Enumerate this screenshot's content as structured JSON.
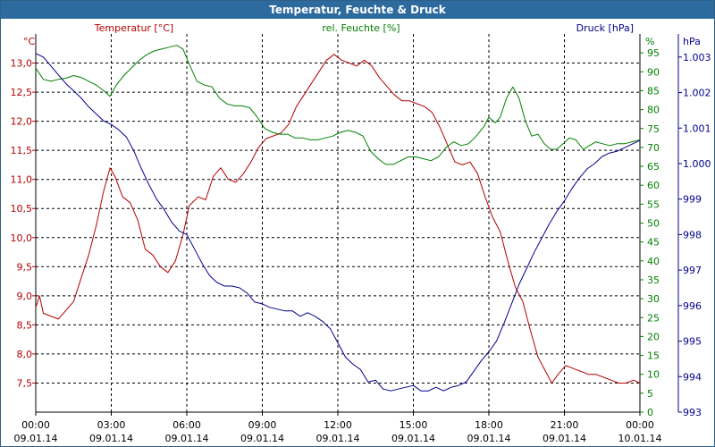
{
  "colors": {
    "temp": "#b40000",
    "hum": "#008000",
    "press": "#00008b",
    "grid": "#000000",
    "title_bg": "#2d6a9e"
  },
  "chart_data": {
    "type": "line",
    "title": "Temperatur, Feuchte & Druck",
    "x_labels": [
      {
        "time": "00:00",
        "date": "09.01.14"
      },
      {
        "time": "03:00",
        "date": "09.01.14"
      },
      {
        "time": "06:00",
        "date": "09.01.14"
      },
      {
        "time": "09:00",
        "date": "09.01.14"
      },
      {
        "time": "12:00",
        "date": "09.01.14"
      },
      {
        "time": "15:00",
        "date": "09.01.14"
      },
      {
        "time": "18:00",
        "date": "09.01.14"
      },
      {
        "time": "21:00",
        "date": "09.01.14"
      },
      {
        "time": "00:00",
        "date": "10.01.14"
      }
    ],
    "x_range_hours": [
      0,
      24
    ],
    "axes": {
      "temp": {
        "title": "Temperatur [°C]",
        "unit": "°C",
        "min": 7.0,
        "max": 13.5,
        "ticks": [
          {
            "v": 7.5,
            "t": "7,5"
          },
          {
            "v": 8.0,
            "t": "8,0"
          },
          {
            "v": 8.5,
            "t": "8,5"
          },
          {
            "v": 9.0,
            "t": "9,0"
          },
          {
            "v": 9.5,
            "t": "9,5"
          },
          {
            "v": 10.0,
            "t": "10,0"
          },
          {
            "v": 10.5,
            "t": "10,5"
          },
          {
            "v": 11.0,
            "t": "11,0"
          },
          {
            "v": 11.5,
            "t": "11,5"
          },
          {
            "v": 12.0,
            "t": "12,0"
          },
          {
            "v": 12.5,
            "t": "12,5"
          },
          {
            "v": 13.0,
            "t": "13,0"
          }
        ]
      },
      "hum": {
        "title": "rel. Feuchte [%]",
        "unit": "%",
        "min": 0,
        "max": 100,
        "ticks": [
          {
            "v": 0,
            "t": "0"
          },
          {
            "v": 5,
            "t": "5"
          },
          {
            "v": 10,
            "t": "10"
          },
          {
            "v": 15,
            "t": "15"
          },
          {
            "v": 20,
            "t": "20"
          },
          {
            "v": 25,
            "t": "25"
          },
          {
            "v": 30,
            "t": "30"
          },
          {
            "v": 35,
            "t": "35"
          },
          {
            "v": 40,
            "t": "40"
          },
          {
            "v": 45,
            "t": "45"
          },
          {
            "v": 50,
            "t": "50"
          },
          {
            "v": 55,
            "t": "55"
          },
          {
            "v": 60,
            "t": "60"
          },
          {
            "v": 65,
            "t": "65"
          },
          {
            "v": 70,
            "t": "70"
          },
          {
            "v": 75,
            "t": "75"
          },
          {
            "v": 80,
            "t": "80"
          },
          {
            "v": 85,
            "t": "85"
          },
          {
            "v": 90,
            "t": "90"
          },
          {
            "v": 95,
            "t": "95"
          }
        ]
      },
      "press": {
        "title": "Druck [hPa]",
        "unit": "hPa",
        "min": 993.0,
        "max": 1003.65,
        "ticks": [
          {
            "v": 993,
            "t": "993"
          },
          {
            "v": 994,
            "t": "994"
          },
          {
            "v": 995,
            "t": "995"
          },
          {
            "v": 996,
            "t": "996"
          },
          {
            "v": 997,
            "t": "997"
          },
          {
            "v": 998,
            "t": "998"
          },
          {
            "v": 999,
            "t": "999"
          },
          {
            "v": 1000,
            "t": "1.000"
          },
          {
            "v": 1001,
            "t": "1.001"
          },
          {
            "v": 1002,
            "t": "1.002"
          },
          {
            "v": 1003,
            "t": "1.003"
          }
        ]
      }
    },
    "series": [
      {
        "name": "Temperatur [°C]",
        "axis": "temp",
        "points": [
          [
            0,
            8.8
          ],
          [
            0.15,
            9.0
          ],
          [
            0.3,
            8.7
          ],
          [
            0.6,
            8.65
          ],
          [
            0.9,
            8.6
          ],
          [
            1.2,
            8.75
          ],
          [
            1.5,
            8.9
          ],
          [
            1.8,
            9.3
          ],
          [
            2.1,
            9.7
          ],
          [
            2.4,
            10.2
          ],
          [
            2.7,
            10.8
          ],
          [
            2.95,
            11.2
          ],
          [
            3.15,
            11.05
          ],
          [
            3.45,
            10.7
          ],
          [
            3.75,
            10.6
          ],
          [
            4.05,
            10.3
          ],
          [
            4.35,
            9.8
          ],
          [
            4.65,
            9.7
          ],
          [
            4.95,
            9.5
          ],
          [
            5.25,
            9.4
          ],
          [
            5.55,
            9.6
          ],
          [
            5.85,
            10.05
          ],
          [
            6.1,
            10.55
          ],
          [
            6.45,
            10.7
          ],
          [
            6.75,
            10.65
          ],
          [
            7.05,
            11.05
          ],
          [
            7.35,
            11.2
          ],
          [
            7.65,
            11.0
          ],
          [
            7.95,
            10.95
          ],
          [
            8.25,
            11.1
          ],
          [
            8.55,
            11.3
          ],
          [
            8.85,
            11.55
          ],
          [
            9.15,
            11.7
          ],
          [
            9.45,
            11.75
          ],
          [
            9.75,
            11.8
          ],
          [
            10.05,
            11.95
          ],
          [
            10.35,
            12.25
          ],
          [
            10.65,
            12.45
          ],
          [
            10.95,
            12.65
          ],
          [
            11.25,
            12.85
          ],
          [
            11.55,
            13.05
          ],
          [
            11.85,
            13.15
          ],
          [
            12.15,
            13.05
          ],
          [
            12.45,
            13.0
          ],
          [
            12.75,
            12.95
          ],
          [
            13.05,
            13.05
          ],
          [
            13.35,
            12.95
          ],
          [
            13.65,
            12.75
          ],
          [
            13.95,
            12.6
          ],
          [
            14.25,
            12.45
          ],
          [
            14.55,
            12.35
          ],
          [
            14.85,
            12.35
          ],
          [
            15.15,
            12.3
          ],
          [
            15.45,
            12.25
          ],
          [
            15.75,
            12.15
          ],
          [
            16.05,
            11.9
          ],
          [
            16.35,
            11.6
          ],
          [
            16.65,
            11.3
          ],
          [
            16.95,
            11.25
          ],
          [
            17.25,
            11.3
          ],
          [
            17.55,
            11.1
          ],
          [
            17.85,
            10.7
          ],
          [
            18.15,
            10.35
          ],
          [
            18.45,
            10.1
          ],
          [
            18.75,
            9.6
          ],
          [
            19.05,
            9.15
          ],
          [
            19.35,
            8.9
          ],
          [
            19.65,
            8.4
          ],
          [
            19.95,
            7.95
          ],
          [
            20.25,
            7.7
          ],
          [
            20.5,
            7.5
          ],
          [
            20.75,
            7.65
          ],
          [
            21.05,
            7.8
          ],
          [
            21.35,
            7.75
          ],
          [
            21.65,
            7.7
          ],
          [
            21.95,
            7.65
          ],
          [
            22.25,
            7.65
          ],
          [
            22.55,
            7.6
          ],
          [
            22.85,
            7.55
          ],
          [
            23.15,
            7.5
          ],
          [
            23.45,
            7.5
          ],
          [
            23.75,
            7.55
          ],
          [
            24,
            7.5
          ]
        ]
      },
      {
        "name": "rel. Feuchte [%]",
        "axis": "hum",
        "points": [
          [
            0,
            91
          ],
          [
            0.3,
            88
          ],
          [
            0.6,
            87.5
          ],
          [
            0.9,
            88
          ],
          [
            1.2,
            88.3
          ],
          [
            1.5,
            89
          ],
          [
            1.8,
            88.5
          ],
          [
            2.1,
            87.5
          ],
          [
            2.4,
            86.5
          ],
          [
            2.7,
            85
          ],
          [
            2.95,
            83.5
          ],
          [
            3.2,
            86.5
          ],
          [
            3.5,
            89
          ],
          [
            3.8,
            91
          ],
          [
            4.1,
            93
          ],
          [
            4.4,
            94.5
          ],
          [
            4.7,
            95.5
          ],
          [
            5.0,
            96
          ],
          [
            5.3,
            96.5
          ],
          [
            5.6,
            97
          ],
          [
            5.85,
            96
          ],
          [
            6.1,
            92
          ],
          [
            6.4,
            87.5
          ],
          [
            6.7,
            86.5
          ],
          [
            7.0,
            86
          ],
          [
            7.3,
            83
          ],
          [
            7.6,
            81.5
          ],
          [
            7.9,
            81
          ],
          [
            8.2,
            81
          ],
          [
            8.5,
            80.5
          ],
          [
            8.8,
            78
          ],
          [
            9.1,
            75
          ],
          [
            9.4,
            74
          ],
          [
            9.7,
            73.5
          ],
          [
            10.0,
            73.5
          ],
          [
            10.3,
            72.5
          ],
          [
            10.6,
            72.5
          ],
          [
            10.9,
            72
          ],
          [
            11.2,
            72
          ],
          [
            11.5,
            72.5
          ],
          [
            11.8,
            73
          ],
          [
            12.1,
            74
          ],
          [
            12.4,
            74.5
          ],
          [
            12.7,
            74
          ],
          [
            13.0,
            73
          ],
          [
            13.3,
            69
          ],
          [
            13.6,
            67
          ],
          [
            13.9,
            65.5
          ],
          [
            14.2,
            65.5
          ],
          [
            14.5,
            66.5
          ],
          [
            14.8,
            67.5
          ],
          [
            15.1,
            67.5
          ],
          [
            15.4,
            67
          ],
          [
            15.7,
            66.5
          ],
          [
            16.0,
            67.5
          ],
          [
            16.3,
            70
          ],
          [
            16.6,
            71.5
          ],
          [
            16.9,
            70.5
          ],
          [
            17.2,
            71
          ],
          [
            17.5,
            73
          ],
          [
            17.8,
            75.5
          ],
          [
            18.0,
            78
          ],
          [
            18.25,
            76.5
          ],
          [
            18.45,
            78
          ],
          [
            18.7,
            83
          ],
          [
            18.95,
            86
          ],
          [
            19.2,
            83
          ],
          [
            19.45,
            77
          ],
          [
            19.7,
            73
          ],
          [
            19.95,
            73.5
          ],
          [
            20.2,
            71
          ],
          [
            20.45,
            69.5
          ],
          [
            20.7,
            69.5
          ],
          [
            20.95,
            71
          ],
          [
            21.2,
            72.5
          ],
          [
            21.45,
            72
          ],
          [
            21.75,
            69.5
          ],
          [
            22.0,
            70.5
          ],
          [
            22.25,
            71.5
          ],
          [
            22.5,
            71
          ],
          [
            22.8,
            70.5
          ],
          [
            23.1,
            71
          ],
          [
            23.4,
            71
          ],
          [
            23.7,
            71.5
          ],
          [
            24,
            72
          ]
        ]
      },
      {
        "name": "Druck [hPa]",
        "axis": "press",
        "points": [
          [
            0,
            1003.1
          ],
          [
            0.3,
            1003.0
          ],
          [
            0.6,
            1002.75
          ],
          [
            0.9,
            1002.5
          ],
          [
            1.2,
            1002.25
          ],
          [
            1.5,
            1002.05
          ],
          [
            1.8,
            1001.85
          ],
          [
            2.1,
            1001.6
          ],
          [
            2.4,
            1001.4
          ],
          [
            2.7,
            1001.2
          ],
          [
            3.0,
            1001.1
          ],
          [
            3.3,
            1000.95
          ],
          [
            3.6,
            1000.75
          ],
          [
            3.9,
            1000.35
          ],
          [
            4.2,
            999.85
          ],
          [
            4.5,
            999.4
          ],
          [
            4.8,
            999.0
          ],
          [
            5.1,
            998.7
          ],
          [
            5.4,
            998.35
          ],
          [
            5.7,
            998.1
          ],
          [
            6.0,
            998.0
          ],
          [
            6.3,
            997.6
          ],
          [
            6.6,
            997.2
          ],
          [
            6.9,
            996.85
          ],
          [
            7.2,
            996.65
          ],
          [
            7.5,
            996.55
          ],
          [
            7.8,
            996.55
          ],
          [
            8.1,
            996.5
          ],
          [
            8.4,
            996.35
          ],
          [
            8.7,
            996.1
          ],
          [
            9.0,
            996.05
          ],
          [
            9.3,
            995.95
          ],
          [
            9.6,
            995.9
          ],
          [
            9.9,
            995.85
          ],
          [
            10.2,
            995.85
          ],
          [
            10.5,
            995.7
          ],
          [
            10.8,
            995.8
          ],
          [
            11.1,
            995.7
          ],
          [
            11.4,
            995.55
          ],
          [
            11.7,
            995.35
          ],
          [
            12.0,
            994.95
          ],
          [
            12.3,
            994.55
          ],
          [
            12.6,
            994.35
          ],
          [
            12.9,
            994.2
          ],
          [
            13.2,
            993.85
          ],
          [
            13.5,
            993.9
          ],
          [
            13.8,
            993.65
          ],
          [
            14.1,
            993.6
          ],
          [
            14.4,
            993.65
          ],
          [
            14.7,
            993.7
          ],
          [
            15.0,
            993.75
          ],
          [
            15.3,
            993.6
          ],
          [
            15.6,
            993.6
          ],
          [
            15.9,
            993.7
          ],
          [
            16.2,
            993.6
          ],
          [
            16.5,
            993.7
          ],
          [
            16.8,
            993.75
          ],
          [
            17.1,
            993.85
          ],
          [
            17.4,
            994.15
          ],
          [
            17.7,
            994.45
          ],
          [
            18.0,
            994.7
          ],
          [
            18.3,
            995.0
          ],
          [
            18.6,
            995.5
          ],
          [
            18.9,
            996.05
          ],
          [
            19.2,
            996.6
          ],
          [
            19.5,
            997.05
          ],
          [
            19.8,
            997.5
          ],
          [
            20.1,
            997.9
          ],
          [
            20.4,
            998.3
          ],
          [
            20.7,
            998.65
          ],
          [
            21.0,
            998.95
          ],
          [
            21.3,
            999.3
          ],
          [
            21.6,
            999.6
          ],
          [
            21.9,
            999.85
          ],
          [
            22.2,
            1000.0
          ],
          [
            22.5,
            1000.2
          ],
          [
            22.8,
            1000.3
          ],
          [
            23.1,
            1000.35
          ],
          [
            23.4,
            1000.45
          ],
          [
            23.7,
            1000.55
          ],
          [
            24,
            1000.65
          ]
        ]
      }
    ]
  }
}
